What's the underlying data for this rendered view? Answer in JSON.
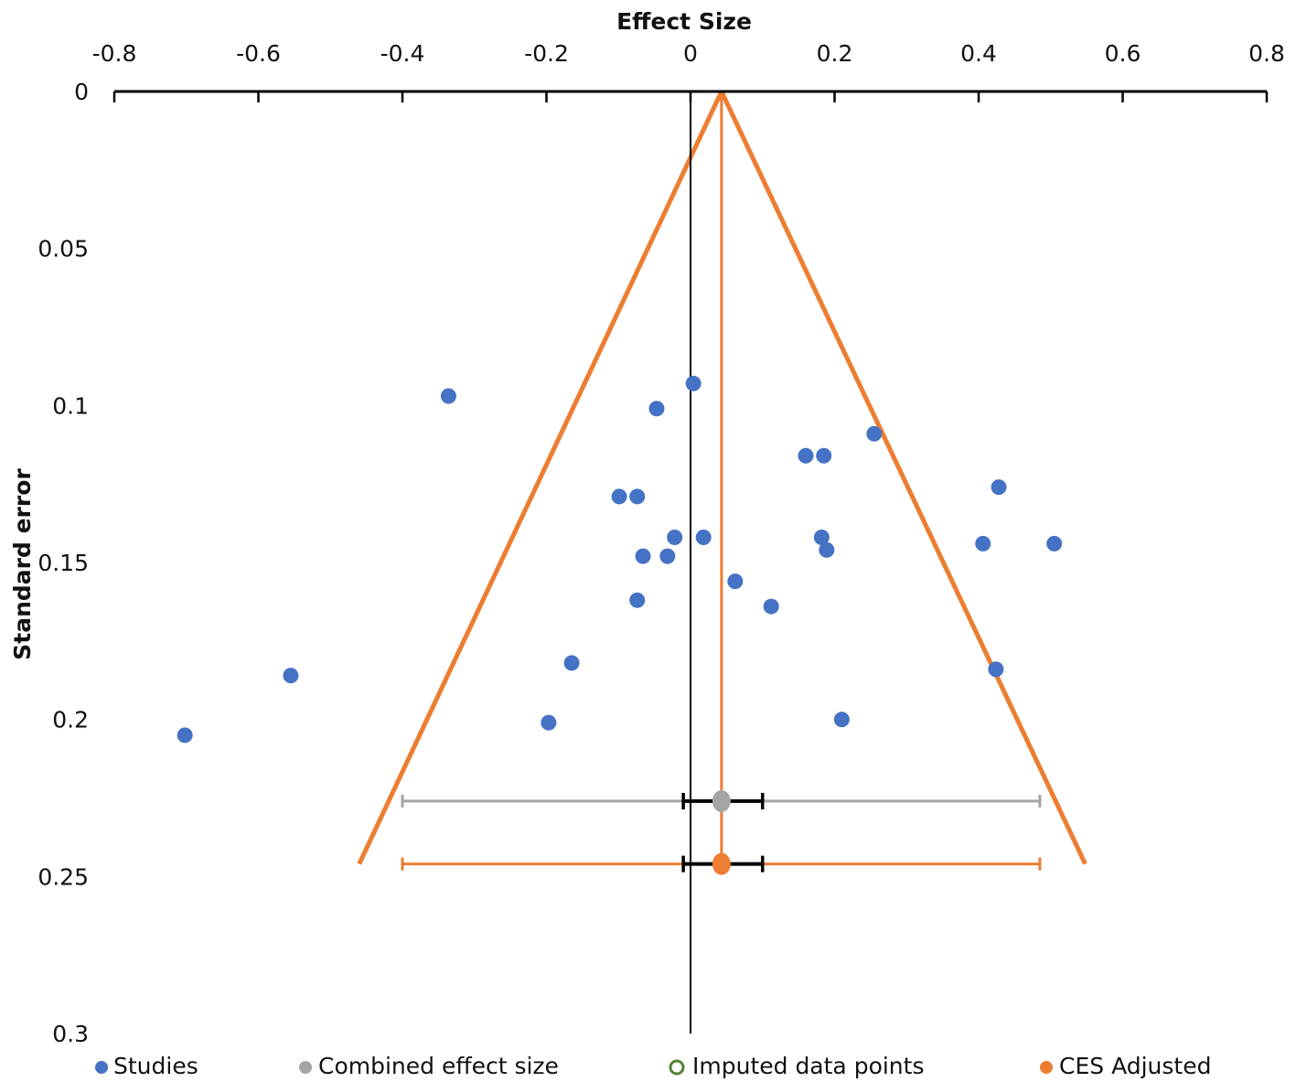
{
  "chart_data": {
    "type": "scatter",
    "subtype": "funnel-plot",
    "title": "",
    "xlabel": "Effect Size",
    "ylabel": "Standard error",
    "xlim": [
      -0.8,
      0.8
    ],
    "ylim": [
      0,
      0.3
    ],
    "y_inverted": true,
    "x_axis_position": "top",
    "x_ticks": [
      -0.8,
      -0.6,
      -0.4,
      -0.2,
      0,
      0.2,
      0.4,
      0.6,
      0.8
    ],
    "x_tick_labels": [
      "-0.8",
      "-0.6",
      "-0.4",
      "-0.2",
      "0",
      "0.2",
      "0.4",
      "0.6",
      "0.8"
    ],
    "y_ticks": [
      0,
      0.05,
      0.1,
      0.15,
      0.2,
      0.25,
      0.3
    ],
    "y_tick_labels": [
      "0",
      "0.05",
      "0.1",
      "0.15",
      "0.2",
      "0.25",
      "0.3"
    ],
    "grid": false,
    "legend_position": "bottom",
    "colors": {
      "studies": "#4472C4",
      "combined": "#A5A5A5",
      "imputed": "#548235",
      "adjusted": "#ED7D31",
      "axis": "#000000"
    },
    "series": [
      {
        "name": "Studies",
        "points": [
          {
            "x": -0.336,
            "y": 0.097
          },
          {
            "x": 0.004,
            "y": 0.093
          },
          {
            "x": -0.047,
            "y": 0.101
          },
          {
            "x": 0.255,
            "y": 0.109
          },
          {
            "x": 0.16,
            "y": 0.116
          },
          {
            "x": 0.185,
            "y": 0.116
          },
          {
            "x": 0.428,
            "y": 0.126
          },
          {
            "x": -0.099,
            "y": 0.129
          },
          {
            "x": -0.074,
            "y": 0.129
          },
          {
            "x": -0.022,
            "y": 0.142
          },
          {
            "x": 0.018,
            "y": 0.142
          },
          {
            "x": 0.182,
            "y": 0.142
          },
          {
            "x": 0.189,
            "y": 0.146
          },
          {
            "x": 0.406,
            "y": 0.144
          },
          {
            "x": 0.505,
            "y": 0.144
          },
          {
            "x": -0.066,
            "y": 0.148
          },
          {
            "x": -0.032,
            "y": 0.148
          },
          {
            "x": 0.062,
            "y": 0.156
          },
          {
            "x": 0.112,
            "y": 0.164
          },
          {
            "x": -0.074,
            "y": 0.162
          },
          {
            "x": -0.165,
            "y": 0.182
          },
          {
            "x": -0.555,
            "y": 0.186
          },
          {
            "x": 0.424,
            "y": 0.184
          },
          {
            "x": -0.197,
            "y": 0.201
          },
          {
            "x": 0.21,
            "y": 0.2
          },
          {
            "x": -0.702,
            "y": 0.205
          }
        ]
      },
      {
        "name": "Combined effect size",
        "point": {
          "x": 0.043,
          "y": 0.226
        },
        "ci": [
          -0.01,
          0.1
        ],
        "pi": [
          -0.4,
          0.485
        ]
      },
      {
        "name": "Imputed data points",
        "points": []
      },
      {
        "name": "CES Adjusted",
        "point": {
          "x": 0.043,
          "y": 0.246
        },
        "ci": [
          -0.01,
          0.1
        ],
        "pi": [
          -0.4,
          0.485
        ]
      }
    ],
    "funnel": {
      "apex": {
        "x": 0.043,
        "y": 0
      },
      "left_base": {
        "x": -0.46,
        "y": 0.246
      },
      "right_base": {
        "x": 0.548,
        "y": 0.246
      }
    },
    "reference_lines": [
      {
        "name": "zero-line",
        "x": 0
      },
      {
        "name": "adjusted-mean-line",
        "x": 0.043
      }
    ],
    "legend": [
      "Studies",
      "Combined effect size",
      "Imputed data points",
      "CES Adjusted"
    ]
  }
}
